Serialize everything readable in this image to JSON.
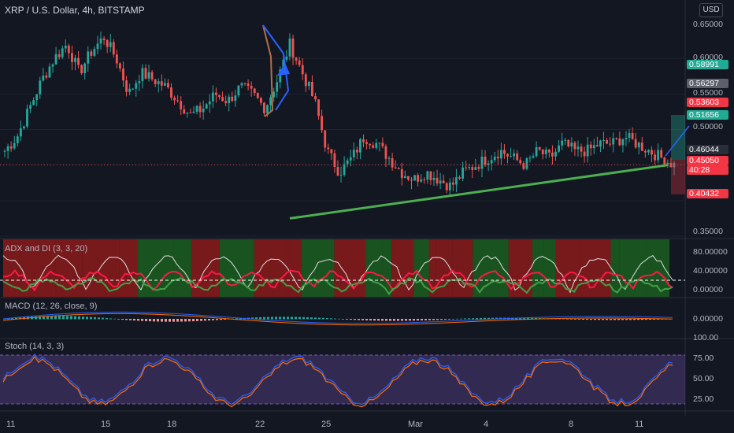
{
  "header": {
    "title": "XRP / U.S. Dollar, 4h, BITSTAMP",
    "currency_button": "USD"
  },
  "price_axis": {
    "ticks": [
      "0.65000",
      "0.60000",
      "0.55000",
      "0.50000",
      "0.35000"
    ]
  },
  "price_labels": [
    {
      "text": "0.58991",
      "bg": "#22ab94"
    },
    {
      "text": "0.56297",
      "bg": "#5d606b"
    },
    {
      "text": "0.53603",
      "bg": "#f23645"
    },
    {
      "text": "0.51656",
      "bg": "#22ab94"
    },
    {
      "text": "0.46044",
      "bg": "#2a2e39"
    },
    {
      "text": "0.45050",
      "bg": "#f23645"
    },
    {
      "text": "40:28",
      "bg": "#f23645"
    },
    {
      "text": "0.40432",
      "bg": "#f23645"
    }
  ],
  "indicators": {
    "adx": {
      "label": "ADX and DI (3, 3, 20)",
      "ticks": [
        "80.00000",
        "40.00000",
        "0.00000"
      ]
    },
    "macd": {
      "label": "MACD (12, 26, close, 9)",
      "ticks": [
        "0.00000"
      ]
    },
    "stoch": {
      "label": "Stoch (14, 3, 3)",
      "ticks": [
        "100.00",
        "75.00",
        "50.00",
        "25.00"
      ]
    }
  },
  "x_axis": {
    "labels": [
      "11",
      "15",
      "18",
      "22",
      "25",
      "Mar",
      "4",
      "8",
      "11"
    ]
  },
  "colors": {
    "background": "#131722",
    "up": "#26a69a",
    "down": "#ef5350",
    "trendline": "#4caf50",
    "stoch_band": "#7e57c2"
  },
  "chart_data": {
    "type": "candlestick",
    "title": "XRP / U.S. Dollar, 4h, BITSTAMP",
    "ylim": [
      0.35,
      0.66
    ],
    "close_path": [
      0.47,
      0.49,
      0.53,
      0.57,
      0.6,
      0.62,
      0.58,
      0.61,
      0.63,
      0.6,
      0.55,
      0.58,
      0.57,
      0.56,
      0.54,
      0.52,
      0.53,
      0.55,
      0.54,
      0.56,
      0.55,
      0.53,
      0.57,
      0.62,
      0.58,
      0.54,
      0.47,
      0.44,
      0.46,
      0.49,
      0.48,
      0.46,
      0.44,
      0.43,
      0.44,
      0.43,
      0.42,
      0.44,
      0.45,
      0.46,
      0.47,
      0.46,
      0.45,
      0.47,
      0.46,
      0.48,
      0.47,
      0.47,
      0.48,
      0.48,
      0.49,
      0.48,
      0.47,
      0.46,
      0.45
    ],
    "last_price": 0.4505,
    "trendline": {
      "from": 0.375,
      "to": 0.45
    }
  }
}
